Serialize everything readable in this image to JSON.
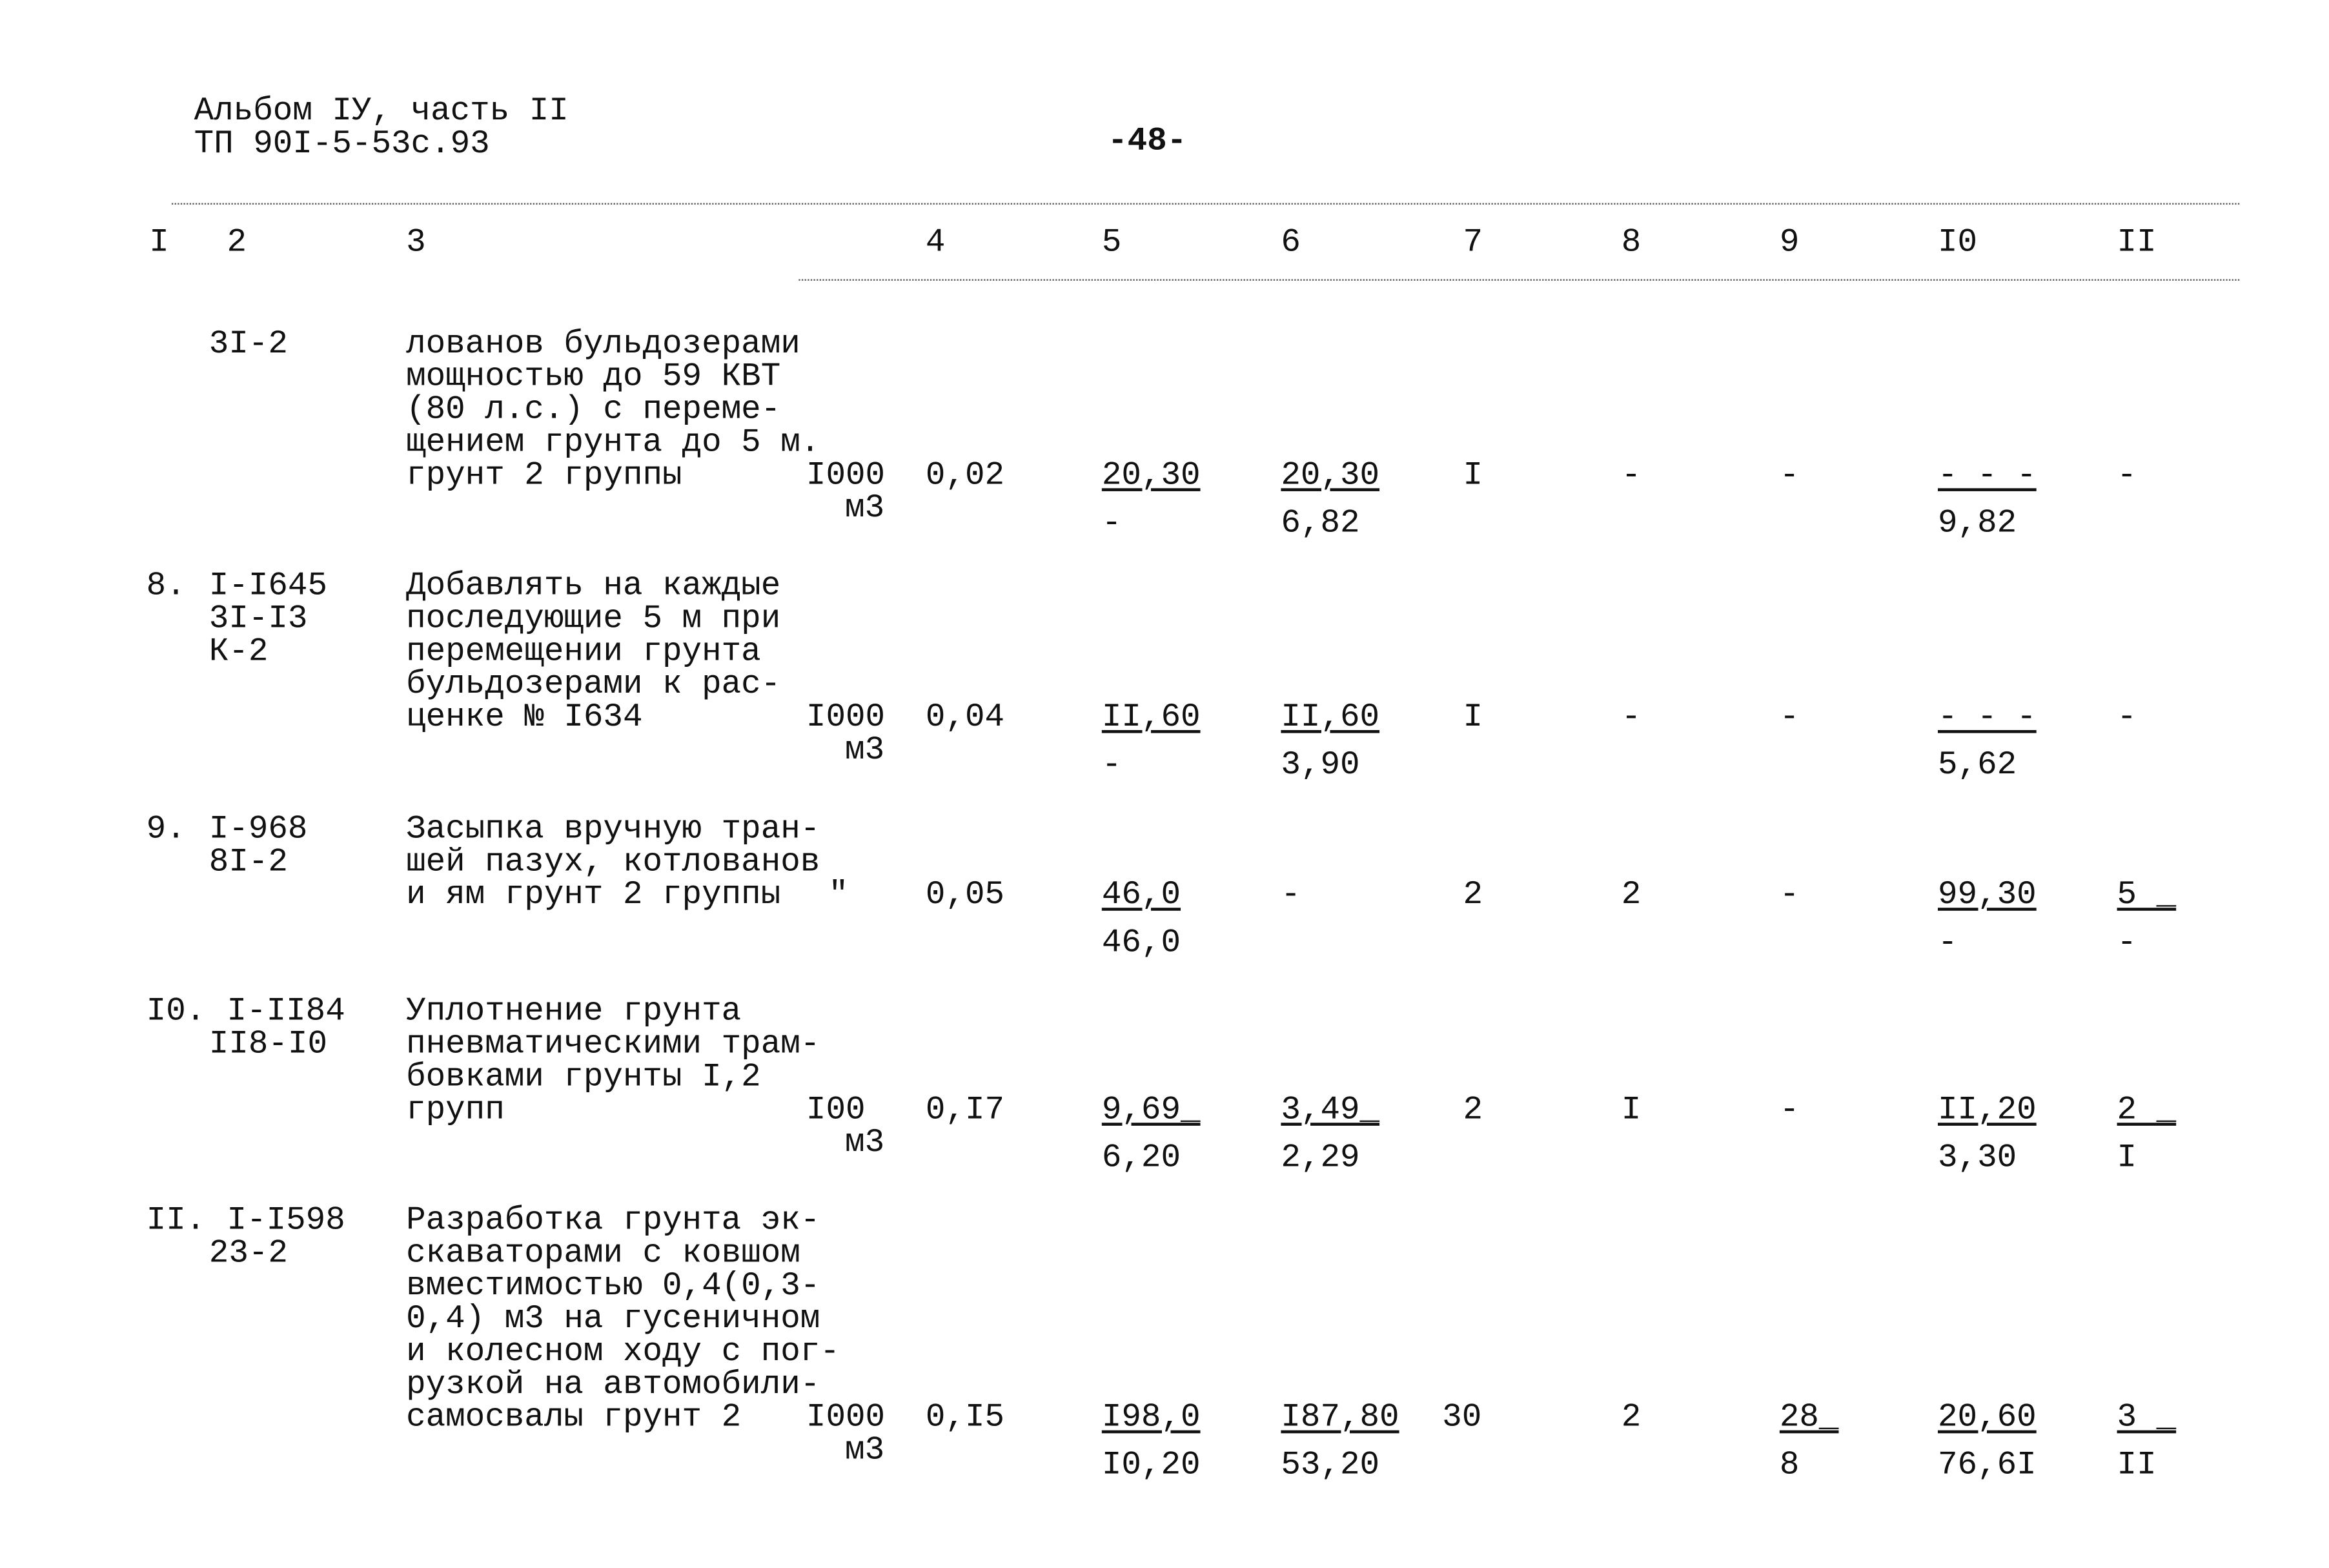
{
  "header": {
    "line1": "Альбом IУ, часть II",
    "line2": "ТП 90I-5-53с.93",
    "page_number": "-48-"
  },
  "columns": [
    "I",
    "2",
    "3",
    "4",
    "5",
    "6",
    "7",
    "8",
    "9",
    "I0",
    "II"
  ],
  "rows": [
    {
      "num": "",
      "codes": [
        "3I-2"
      ],
      "desc": [
        "лованов бульдозерами",
        "мощностью до 59 КВТ",
        "(80 л.с.) с переме-",
        "щением грунта до 5 м.",
        "грунт 2 группы"
      ],
      "unit": [
        "I000",
        "м3"
      ],
      "c4": "0,02",
      "c5": [
        "20,30",
        "-"
      ],
      "c6": [
        "20,30",
        "6,82"
      ],
      "c7": "I",
      "c8": "-",
      "c9": [
        "-",
        ""
      ],
      "c10": [
        "- - -",
        "9,82"
      ],
      "c11": [
        "-",
        ""
      ]
    },
    {
      "num": "8.",
      "codes": [
        "I-I645",
        "3I-I3",
        "К-2"
      ],
      "desc": [
        "Добавлять на каждые",
        "последующие 5 м при",
        "перемещении грунта",
        "бульдозерами к рас-",
        "ценке № I634"
      ],
      "unit": [
        "I000",
        "м3"
      ],
      "c4": "0,04",
      "c5": [
        "II,60",
        "-"
      ],
      "c6": [
        "II,60",
        "3,90"
      ],
      "c7": "I",
      "c8": "-",
      "c9": [
        "-",
        ""
      ],
      "c10": [
        "- - -",
        "5,62"
      ],
      "c11": [
        "-",
        ""
      ]
    },
    {
      "num": "9.",
      "codes": [
        "I-968",
        "8I-2"
      ],
      "desc": [
        "Засыпка вручную тран-",
        "шей пазух, котлованов",
        "и ям грунт 2 группы"
      ],
      "unit": [
        "\"",
        ""
      ],
      "c4": "0,05",
      "c5": [
        "46,0",
        "46,0"
      ],
      "c6": [
        "-",
        ""
      ],
      "c7": "2",
      "c8": "2",
      "c9": [
        "-",
        ""
      ],
      "c10": [
        "99,30",
        "-"
      ],
      "c11": [
        "5 _",
        "-"
      ]
    },
    {
      "num": "I0.",
      "codes": [
        "I-II84",
        "II8-I0"
      ],
      "desc": [
        "Уплотнение грунта",
        "пневматическими трам-",
        "бовками грунты I,2",
        "групп"
      ],
      "unit": [
        "I00",
        "м3"
      ],
      "c4": "0,I7",
      "c5": [
        "9,69_",
        "6,20"
      ],
      "c6": [
        "3,49_",
        "2,29"
      ],
      "c7": "2",
      "c8": "I",
      "c9": [
        "-",
        ""
      ],
      "c10": [
        "II,20",
        "3,30"
      ],
      "c11": [
        "2 _",
        "I"
      ]
    },
    {
      "num": "II.",
      "codes": [
        "I-I598",
        "23-2"
      ],
      "desc": [
        "Разработка грунта эк-",
        "скаваторами с ковшом",
        "вместимостью 0,4(0,3-",
        "0,4) м3 на гусеничном",
        "и колесном ходу с пог-",
        "рузкой на автомобили-",
        "самосвалы грунт 2"
      ],
      "unit": [
        "I000",
        "м3"
      ],
      "c4": "0,I5",
      "c5": [
        "I98,0",
        "I0,20"
      ],
      "c6": [
        "I87,80",
        "53,20"
      ],
      "c7": "30",
      "c8": "2",
      "c9": [
        "28_",
        "8"
      ],
      "c10": [
        "20,60",
        "76,6I"
      ],
      "c11": [
        "3 _",
        "II"
      ]
    }
  ]
}
